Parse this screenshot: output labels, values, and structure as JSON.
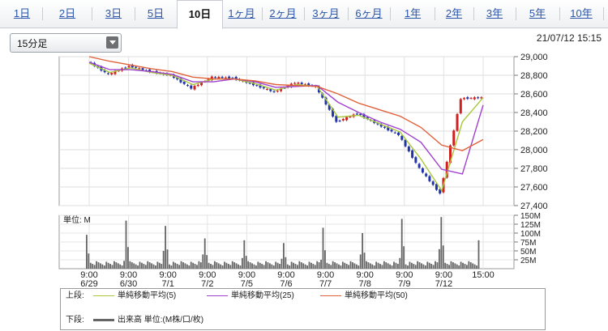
{
  "tabs": [
    "1日",
    "2日",
    "3日",
    "5日",
    "10日",
    "1ヶ月",
    "2ヶ月",
    "3ヶ月",
    "6ヶ月",
    "1年",
    "2年",
    "3年",
    "5年",
    "10年"
  ],
  "active_tab": "10日",
  "interval_select": {
    "value": "15分足"
  },
  "timestamp": "21/07/12 15:15",
  "colors": {
    "ma5": "#a8c83c",
    "ma25": "#a040d0",
    "ma50": "#e0603a",
    "candle_up": "#d02020",
    "candle_down": "#2233aa",
    "volume": "#666666"
  },
  "chart_data": [
    {
      "type": "line",
      "title": "",
      "xlabel": "",
      "ylabel": "",
      "ylim": [
        27400,
        29000
      ],
      "yticks": [
        "29,000",
        "28,800",
        "28,600",
        "28,400",
        "28,200",
        "28,000",
        "27,800",
        "27,600",
        "27,400"
      ],
      "yticks_values": [
        29000,
        28800,
        28600,
        28400,
        28200,
        28000,
        27800,
        27600,
        27400
      ],
      "grid": true,
      "x": [
        "6/29 9:00",
        "6/29 15:00",
        "6/30 9:00",
        "6/30 15:00",
        "7/1 9:00",
        "7/1 15:00",
        "7/2 9:00",
        "7/2 15:00",
        "7/5 9:00",
        "7/5 15:00",
        "7/6 9:00",
        "7/6 15:00",
        "7/7 9:00",
        "7/7 15:00",
        "7/8 9:00",
        "7/8 15:00",
        "7/9 9:00",
        "7/9 15:00",
        "7/12 9:00",
        "7/12 15:00"
      ],
      "series": [
        {
          "name": "price",
          "values": [
            28950,
            28810,
            28900,
            28840,
            28800,
            28660,
            28780,
            28770,
            28700,
            28620,
            28720,
            28680,
            28300,
            28390,
            28270,
            28160,
            27800,
            27530,
            28550,
            28560
          ]
        },
        {
          "name": "単純移動平均(5)",
          "values": [
            28930,
            28830,
            28880,
            28830,
            28800,
            28700,
            28760,
            28760,
            28710,
            28640,
            28700,
            28680,
            28350,
            28370,
            28280,
            28190,
            27900,
            27560,
            28300,
            28560
          ]
        },
        {
          "name": "単純移動平均(25)",
          "values": [
            28940,
            28860,
            28860,
            28840,
            28810,
            28730,
            28730,
            28760,
            28730,
            28670,
            28680,
            28690,
            28510,
            28400,
            28300,
            28220,
            28080,
            27790,
            27740,
            28480
          ]
        },
        {
          "name": "単純移動平均(50)",
          "values": [
            29000,
            28950,
            28910,
            28870,
            28840,
            28780,
            28760,
            28760,
            28740,
            28700,
            28690,
            28680,
            28600,
            28500,
            28430,
            28360,
            28240,
            28050,
            27990,
            28110
          ]
        }
      ]
    },
    {
      "type": "bar",
      "title": "",
      "ylabel": "単位: M",
      "ylim": [
        0,
        150
      ],
      "yticks": [
        "150M",
        "125M",
        "100M",
        "75M",
        "50M",
        "25M"
      ],
      "yticks_values": [
        150,
        125,
        100,
        75,
        50,
        25
      ],
      "categories": [
        "6/29",
        "6/30",
        "7/1",
        "7/2",
        "7/5",
        "7/6",
        "7/7",
        "7/8",
        "7/9",
        "7/12"
      ],
      "series": [
        {
          "name": "出来高",
          "session_open_peak": [
            95,
            135,
            120,
            85,
            80,
            72,
            115,
            100,
            140,
            145
          ],
          "close_peak": [
            22,
            50,
            40,
            30,
            28,
            25,
            40,
            30,
            55,
            80
          ],
          "typical": 15
        }
      ]
    }
  ],
  "x_axis_labels": [
    {
      "time": "9:00",
      "date": "6/29"
    },
    {
      "time": "9:00",
      "date": "6/30"
    },
    {
      "time": "9:00",
      "date": "7/1"
    },
    {
      "time": "9:00",
      "date": "7/2"
    },
    {
      "time": "9:00",
      "date": "7/5"
    },
    {
      "time": "9:00",
      "date": "7/6"
    },
    {
      "time": "9:00",
      "date": "7/7"
    },
    {
      "time": "9:00",
      "date": "7/8"
    },
    {
      "time": "9:00",
      "date": "7/9"
    },
    {
      "time": "9:00",
      "date": "7/12"
    },
    {
      "time": "15:00",
      "date": ""
    }
  ],
  "legend": {
    "upper_label": "上段:",
    "lower_label": "下段:",
    "ma5": "単純移動平均(5)",
    "ma25": "単純移動平均(25)",
    "ma50": "単純移動平均(50)",
    "volume": "出来高 単位:(M株/口/枚)"
  }
}
